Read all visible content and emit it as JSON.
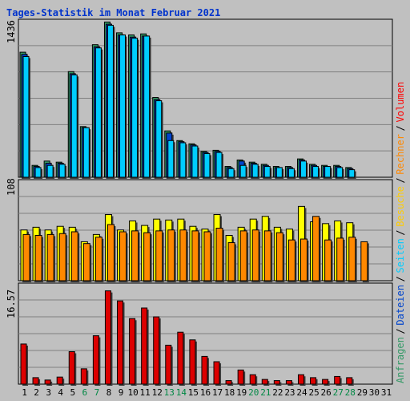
{
  "title": "Tages-Statistik im Monat Februar 2021",
  "legend": [
    {
      "text": "Anfragen",
      "color": "#339966"
    },
    {
      "text": "Dateien",
      "color": "#0044cc"
    },
    {
      "text": "Seiten",
      "color": "#00ccff"
    },
    {
      "text": "Besuche",
      "color": "#ffcc00"
    },
    {
      "text": "Rechner",
      "color": "#ff8800"
    },
    {
      "text": "Volumen",
      "color": "#ff0000"
    }
  ],
  "legend_separator": "/",
  "chart_data": [
    {
      "type": "bar",
      "categories": [
        "1",
        "2",
        "3",
        "4",
        "5",
        "6",
        "7",
        "8",
        "9",
        "10",
        "11",
        "12",
        "13",
        "14",
        "15",
        "16",
        "17",
        "18",
        "19",
        "20",
        "21",
        "22",
        "23",
        "24",
        "25",
        "26",
        "27",
        "28",
        "29",
        "30",
        "31"
      ],
      "weekend_days": [
        "6",
        "7",
        "13",
        "14",
        "20",
        "21",
        "27",
        "28"
      ],
      "ymax_label": "1436",
      "ylim": [
        0,
        1436
      ],
      "series": [
        {
          "name": "Anfragen",
          "color": "#339966",
          "values": [
            1160,
            110,
            150,
            140,
            980,
            470,
            1230,
            1440,
            1340,
            1320,
            1330,
            740,
            430,
            340,
            310,
            240,
            250,
            100,
            160,
            140,
            120,
            100,
            100,
            170,
            120,
            110,
            110,
            90,
            0,
            0,
            0
          ]
        },
        {
          "name": "Dateien",
          "color": "#0044cc",
          "values": [
            1140,
            100,
            130,
            130,
            960,
            460,
            1210,
            1420,
            1320,
            1300,
            1310,
            720,
            410,
            330,
            300,
            230,
            240,
            90,
            150,
            130,
            110,
            90,
            90,
            160,
            110,
            100,
            100,
            80,
            0,
            0,
            0
          ]
        },
        {
          "name": "Seiten",
          "color": "#00ccff",
          "values": [
            1120,
            90,
            110,
            120,
            950,
            460,
            1200,
            1410,
            1320,
            1290,
            1310,
            710,
            340,
            320,
            290,
            220,
            230,
            80,
            110,
            120,
            100,
            90,
            80,
            150,
            100,
            100,
            90,
            70,
            0,
            0,
            0
          ]
        }
      ]
    },
    {
      "type": "bar",
      "categories": [
        "1",
        "2",
        "3",
        "4",
        "5",
        "6",
        "7",
        "8",
        "9",
        "10",
        "11",
        "12",
        "13",
        "14",
        "15",
        "16",
        "17",
        "18",
        "19",
        "20",
        "21",
        "22",
        "23",
        "24",
        "25",
        "26",
        "27",
        "28",
        "29",
        "30",
        "31"
      ],
      "ymax_label": "108",
      "ylim": [
        0,
        108
      ],
      "series": [
        {
          "name": "Besuche",
          "color": "#ffff00",
          "values": [
            56,
            59,
            56,
            60,
            59,
            43,
            51,
            73,
            56,
            66,
            61,
            68,
            67,
            68,
            60,
            57,
            73,
            50,
            59,
            68,
            71,
            59,
            57,
            82,
            65,
            63,
            66,
            64,
            0,
            0,
            0
          ]
        },
        {
          "name": "Rechner",
          "color": "#ff8800",
          "values": [
            51,
            50,
            51,
            52,
            54,
            41,
            48,
            62,
            54,
            55,
            53,
            55,
            56,
            56,
            55,
            54,
            58,
            42,
            55,
            56,
            55,
            53,
            45,
            46,
            71,
            45,
            47,
            48,
            43,
            0,
            0
          ]
        }
      ]
    },
    {
      "type": "bar",
      "categories": [
        "1",
        "2",
        "3",
        "4",
        "5",
        "6",
        "7",
        "8",
        "9",
        "10",
        "11",
        "12",
        "13",
        "14",
        "15",
        "16",
        "17",
        "18",
        "19",
        "20",
        "21",
        "22",
        "23",
        "24",
        "25",
        "26",
        "27",
        "28",
        "29",
        "30",
        "31"
      ],
      "ymax_label": "16.57",
      "ylim": [
        0,
        16.57
      ],
      "series": [
        {
          "name": "Volumen",
          "color": "#dd0000",
          "values": [
            6.8,
            1.1,
            0.7,
            1.2,
            5.5,
            2.6,
            8.2,
            15.8,
            14.1,
            11.1,
            12.9,
            11.4,
            6.6,
            8.8,
            7.5,
            4.7,
            3.8,
            0.6,
            2.4,
            1.6,
            0.8,
            0.6,
            0.6,
            1.6,
            1.1,
            0.8,
            1.3,
            1.1,
            0,
            0,
            0
          ]
        }
      ]
    }
  ]
}
